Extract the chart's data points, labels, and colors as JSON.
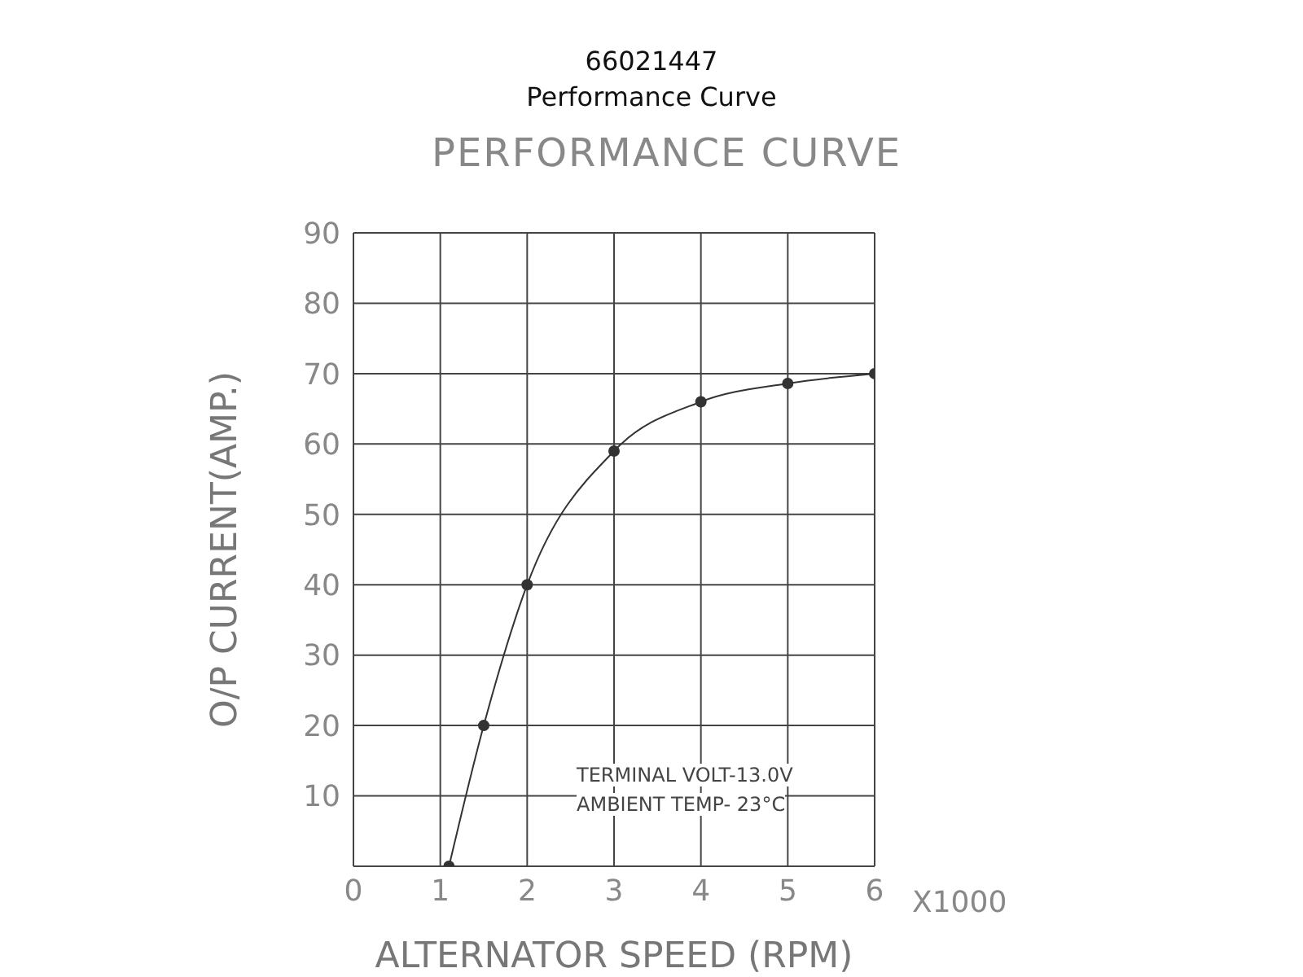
{
  "chart_data": {
    "type": "line",
    "title": "66021447",
    "subtitle": "Performance Curve",
    "xlabel": "ALTERNATOR SPEED (RPM)",
    "ylabel": "O/P CURRENT(AMP.)",
    "annotations": [
      "PERFORMANCE CURVE",
      "X1000",
      "TERMINAL VOLT-13.0V",
      "AMBIENT TEMP- 23°C"
    ],
    "x": [
      1.1,
      1.5,
      2,
      3,
      4,
      5,
      6
    ],
    "series": [
      {
        "color": "#333333",
        "values": [
          0,
          20,
          40,
          59,
          66,
          68.6,
          70
        ]
      }
    ],
    "xlim": [
      0,
      6
    ],
    "xticks": [
      0,
      1,
      2,
      3,
      4,
      5,
      6
    ],
    "ylim": [
      0,
      90
    ],
    "yticks": [
      {
        "value": 0,
        "label": null
      },
      10,
      20,
      30,
      40,
      50,
      60,
      70,
      80,
      90
    ],
    "grid": true,
    "legend": false,
    "marker": "circle",
    "line_style": "solid"
  }
}
